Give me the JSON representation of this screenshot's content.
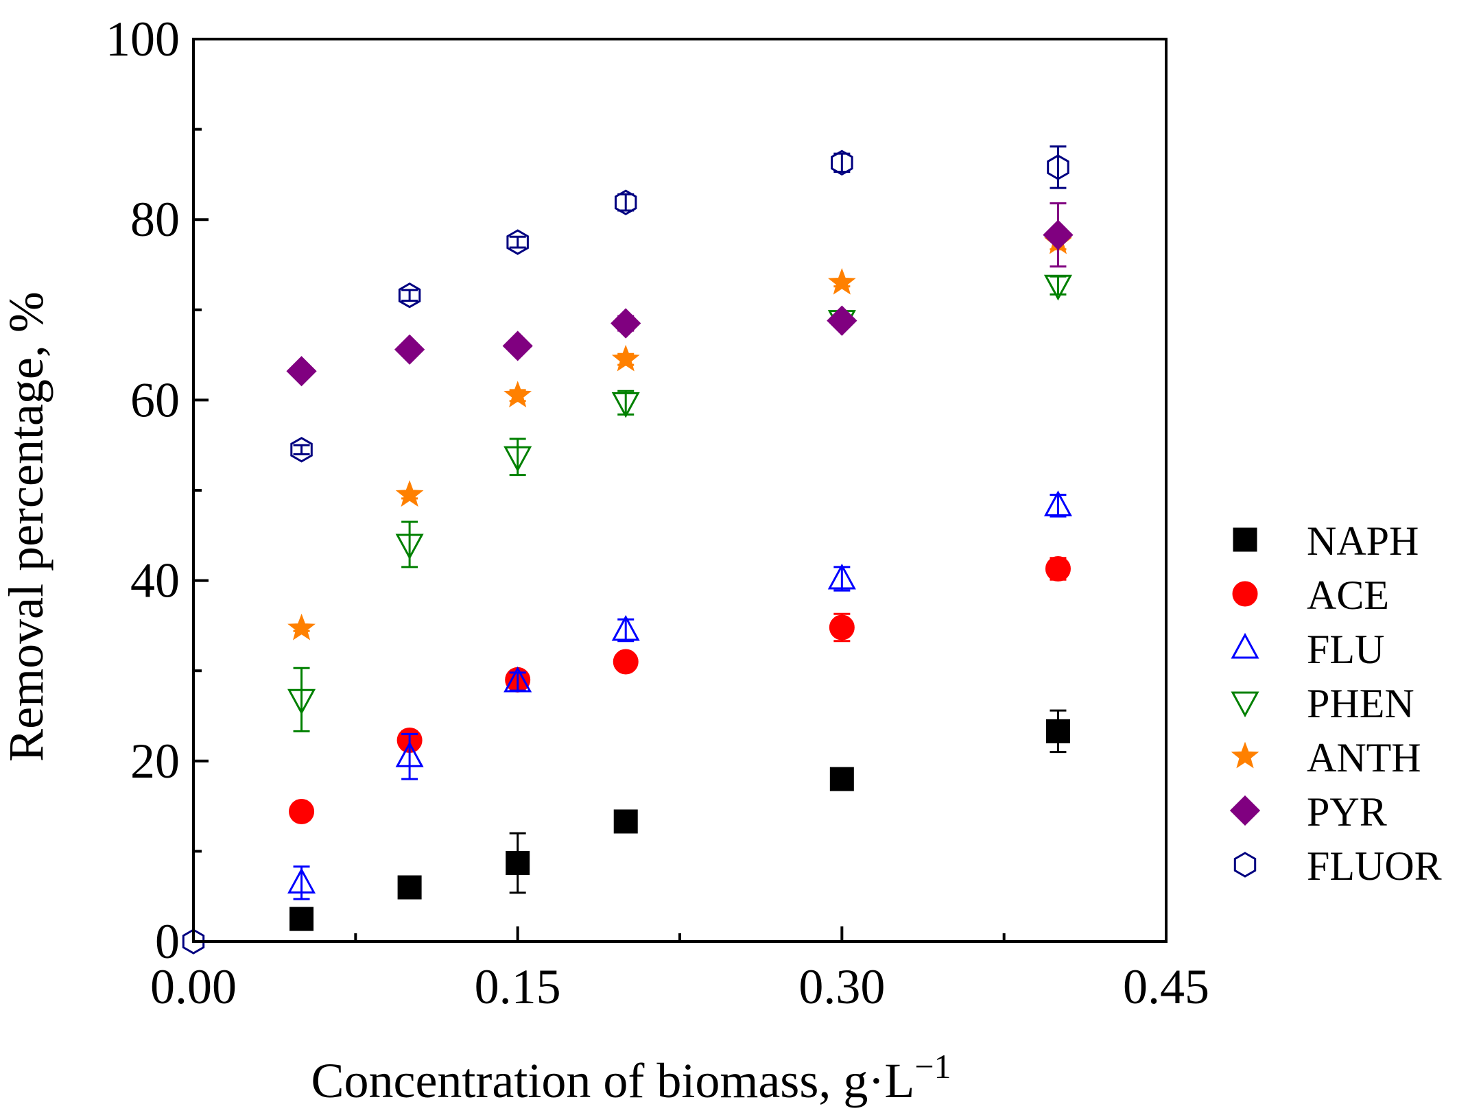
{
  "chart_data": {
    "type": "scatter",
    "title": "",
    "xlabel": "Concentration of biomass, g·L",
    "xlabel_superscript": "−1",
    "ylabel": "Removal percentage, %",
    "xlim": [
      0,
      0.45
    ],
    "ylim": [
      0,
      100
    ],
    "xticks": [
      {
        "value": 0.0,
        "label": "0.00"
      },
      {
        "value": 0.15,
        "label": "0.15"
      },
      {
        "value": 0.3,
        "label": "0.30"
      },
      {
        "value": 0.45,
        "label": "0.45"
      }
    ],
    "x_minor_ticks": [
      0.075,
      0.225,
      0.375
    ],
    "yticks": [
      {
        "value": 0,
        "label": "0"
      },
      {
        "value": 20,
        "label": "20"
      },
      {
        "value": 40,
        "label": "40"
      },
      {
        "value": 60,
        "label": "60"
      },
      {
        "value": 80,
        "label": "80"
      },
      {
        "value": 100,
        "label": "100"
      }
    ],
    "y_minor_ticks": [
      10,
      30,
      50,
      70,
      90
    ],
    "grid": false,
    "legend_position": "right",
    "series": [
      {
        "name": "NAPH",
        "marker": "square",
        "color": "#000000",
        "filled": true,
        "x": [
          0.05,
          0.1,
          0.15,
          0.2,
          0.3,
          0.4
        ],
        "y": [
          2.5,
          6.0,
          8.7,
          13.3,
          18.0,
          23.3
        ],
        "err": [
          0.3,
          0.4,
          3.3,
          0.5,
          0.4,
          2.3
        ]
      },
      {
        "name": "ACE",
        "marker": "circle",
        "color": "#ff0000",
        "filled": true,
        "x": [
          0.05,
          0.1,
          0.15,
          0.2,
          0.3,
          0.4
        ],
        "y": [
          14.4,
          22.3,
          29.0,
          31.0,
          34.8,
          41.3
        ],
        "err": [
          0.3,
          1.0,
          0.6,
          0.4,
          1.5,
          1.2
        ]
      },
      {
        "name": "FLU",
        "marker": "triangle-up",
        "color": "#0000ff",
        "filled": false,
        "x": [
          0.05,
          0.1,
          0.15,
          0.2,
          0.3,
          0.4
        ],
        "y": [
          6.5,
          20.5,
          28.8,
          34.5,
          40.2,
          48.3
        ],
        "err": [
          1.8,
          2.5,
          1.0,
          1.2,
          1.3,
          1.2
        ]
      },
      {
        "name": "PHEN",
        "marker": "triangle-down",
        "color": "#008000",
        "filled": false,
        "x": [
          0.05,
          0.1,
          0.15,
          0.2,
          0.3,
          0.4
        ],
        "y": [
          26.8,
          44.0,
          53.7,
          59.7,
          68.8,
          72.7
        ],
        "err": [
          3.5,
          2.5,
          2.0,
          1.3,
          0.4,
          1.0
        ]
      },
      {
        "name": "ANTH",
        "marker": "star",
        "color": "#ff8000",
        "filled": true,
        "x": [
          0.05,
          0.1,
          0.15,
          0.2,
          0.3,
          0.4
        ],
        "y": [
          34.7,
          49.5,
          60.5,
          64.5,
          73.0,
          77.5
        ],
        "err": [
          0.3,
          0.4,
          0.6,
          0.6,
          0.4,
          0.8
        ]
      },
      {
        "name": "PYR",
        "marker": "diamond",
        "color": "#800080",
        "filled": true,
        "x": [
          0.05,
          0.1,
          0.15,
          0.2,
          0.3,
          0.4
        ],
        "y": [
          63.2,
          65.6,
          66.0,
          68.5,
          68.8,
          78.3
        ],
        "err": [
          0.3,
          0.3,
          0.3,
          0.8,
          0.4,
          3.5
        ]
      },
      {
        "name": "FLUOR",
        "marker": "hexagon",
        "color": "#000080",
        "filled": false,
        "x": [
          0.0,
          0.05,
          0.1,
          0.15,
          0.2,
          0.3,
          0.4
        ],
        "y": [
          0.0,
          54.5,
          71.6,
          77.5,
          81.9,
          86.3,
          85.8
        ],
        "err": [
          0,
          0.5,
          0.6,
          0.6,
          0.9,
          1.0,
          2.3
        ]
      }
    ]
  }
}
